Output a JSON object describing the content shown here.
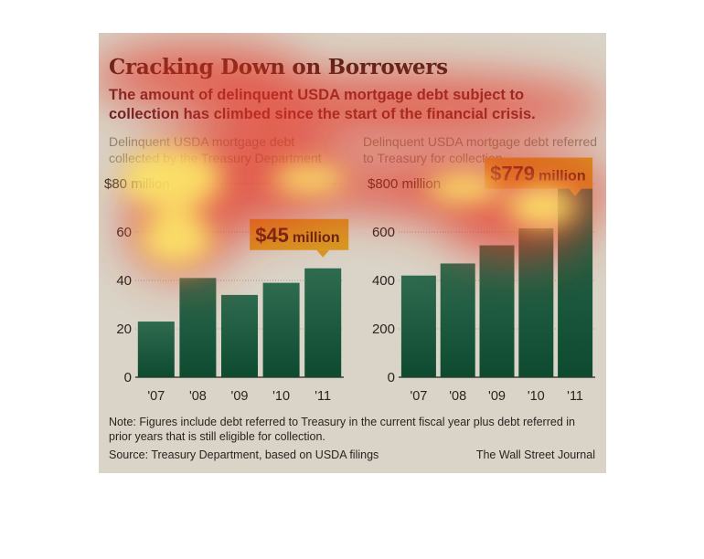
{
  "title": "Cracking Down on Borrowers",
  "subtitle": "The amount of delinquent USDA mortgage debt subject to collection has climbed since the start of the financial crisis.",
  "note": "Note: Figures include debt referred to Treasury in the current fiscal year plus debt referred in prior years that is still eligible for collection.",
  "source": "Source: Treasury Department, based on USDA filings",
  "credit": "The Wall Street Journal",
  "colors": {
    "background": "#d9d4c7",
    "bar_top": "#2e6b4f",
    "bar_bottom": "#0d4a30",
    "callout": "#d79a22",
    "heat_red": "#e53020",
    "heat_yellow": "#fff26a"
  },
  "chart_data": [
    {
      "type": "bar",
      "title": "Delinquent USDA mortgage debt collected by the Treasury Department",
      "categories": [
        "'07",
        "'08",
        "'09",
        "'10",
        "'11"
      ],
      "values": [
        23,
        41,
        34,
        39,
        45
      ],
      "ylim": [
        0,
        80
      ],
      "yticks": [
        "$80 million",
        "60",
        "40",
        "20",
        "0"
      ],
      "ytick_values": [
        80,
        60,
        40,
        20,
        0
      ],
      "callout": {
        "amount": "$45",
        "unit": "million"
      },
      "grid": true
    },
    {
      "type": "bar",
      "title": "Delinquent USDA mortgage debt referred to Treasury for collection",
      "categories": [
        "'07",
        "'08",
        "'09",
        "'10",
        "'11"
      ],
      "values": [
        420,
        470,
        545,
        615,
        779
      ],
      "ylim": [
        0,
        800
      ],
      "yticks": [
        "$800 million",
        "600",
        "400",
        "200",
        "0"
      ],
      "ytick_values": [
        800,
        600,
        400,
        200,
        0
      ],
      "callout": {
        "amount": "$779",
        "unit": "million"
      },
      "grid": true
    }
  ]
}
